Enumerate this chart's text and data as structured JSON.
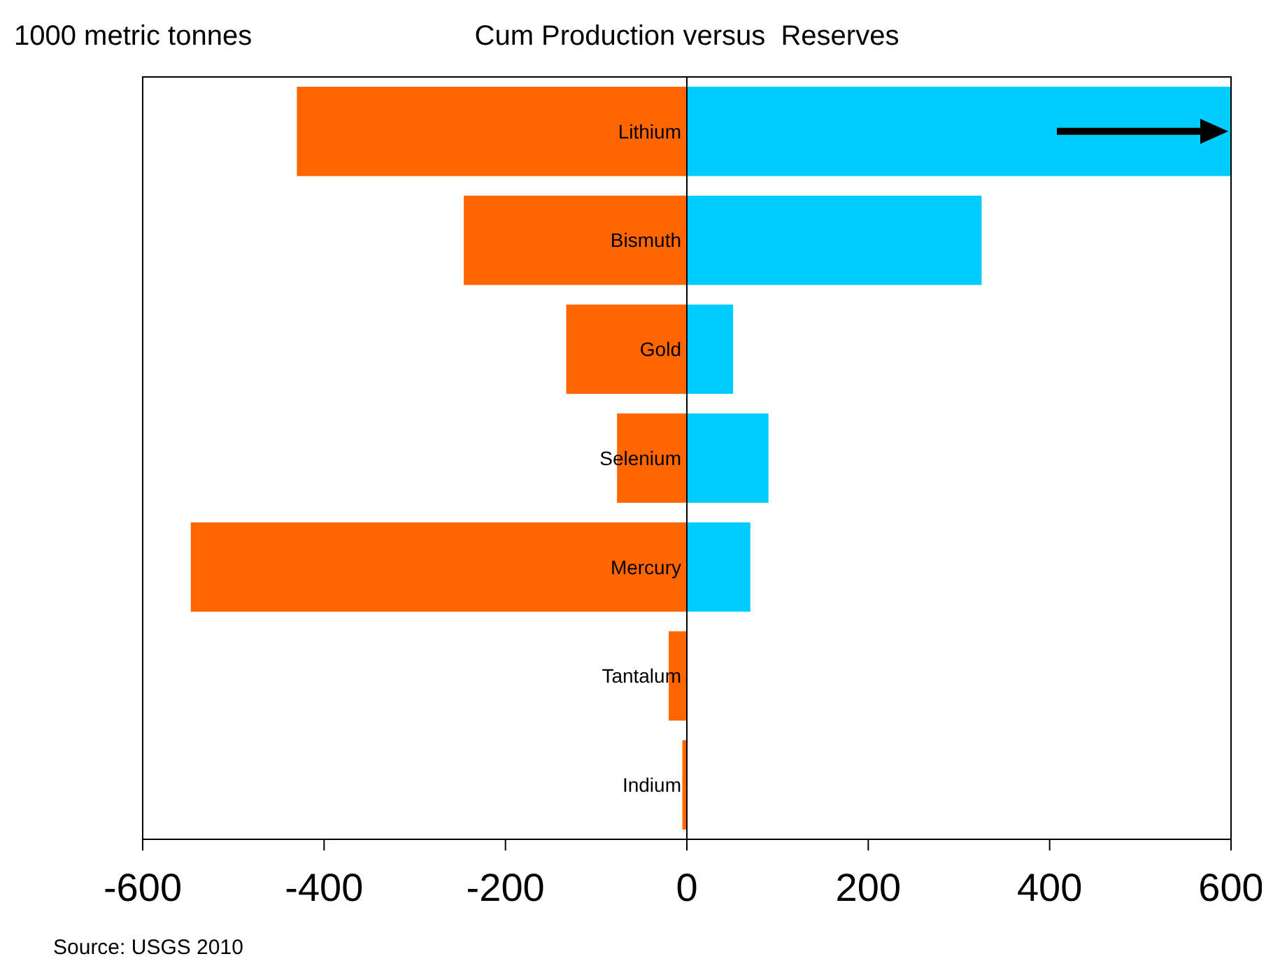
{
  "chart_data": {
    "type": "bar",
    "orientation": "horizontal",
    "stacked": true,
    "title": "Cum Production versus  Reserves",
    "xlabel": "1000 metric tonnes",
    "categories": [
      "Lithium",
      "Bismuth",
      "Gold",
      "Selenium",
      "Mercury",
      "Tantalum",
      "Indium"
    ],
    "series": [
      {
        "color": "#ff6600",
        "values": [
          -430,
          -246,
          -133,
          -77,
          -547,
          -20,
          -5
        ]
      },
      {
        "color": "#00ccff",
        "values": [
          600,
          325,
          51,
          90,
          70,
          null,
          null
        ]
      }
    ],
    "xlim": [
      -600,
      600
    ],
    "xticks": [
      -600,
      -400,
      -200,
      0,
      200,
      400,
      600
    ],
    "grid": false,
    "annotations": [
      "Source: USGS 2010"
    ]
  }
}
